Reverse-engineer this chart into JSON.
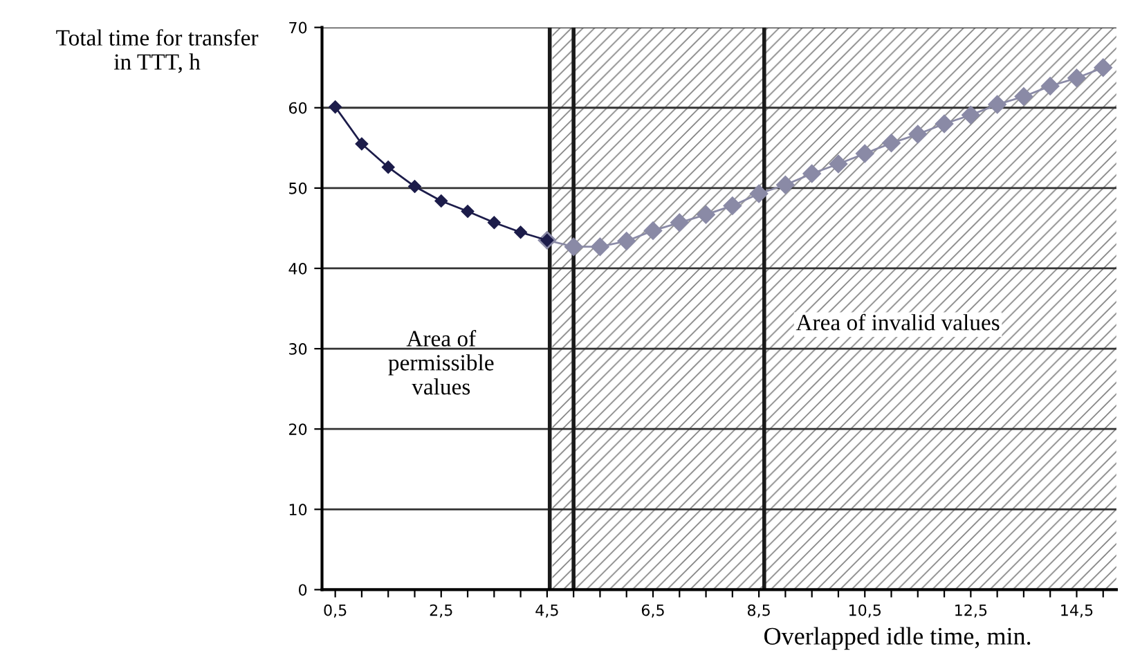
{
  "chart_data": {
    "type": "line",
    "ylabel": "Total time for transfer\nin TTT, h",
    "xlabel": "Overlapped idle time, min.",
    "series": [
      {
        "color": "#1c1c4a",
        "x": [
          0.5,
          1.0,
          1.5,
          2.0,
          2.5,
          3.0,
          3.5,
          4.0,
          4.5
        ],
        "values": [
          60.1,
          55.5,
          52.6,
          50.2,
          48.4,
          47.1,
          45.7,
          44.5,
          43.5
        ]
      },
      {
        "color": "#8a8aa6",
        "x": [
          4.5,
          5.0,
          5.5,
          6.0,
          6.5,
          7.0,
          7.5,
          8.0,
          8.5,
          9.0,
          9.5,
          10.0,
          10.5,
          11.0,
          11.5,
          12.0,
          12.5,
          13.0,
          13.5,
          14.0,
          14.5,
          15.0
        ],
        "values": [
          43.5,
          42.7,
          42.7,
          43.4,
          44.7,
          45.7,
          46.7,
          47.8,
          49.3,
          50.4,
          51.8,
          53.0,
          54.3,
          55.6,
          56.7,
          58.0,
          59.1,
          60.4,
          61.4,
          62.7,
          63.7,
          65.0
        ]
      }
    ],
    "marker": "diamond",
    "line_style": "solid",
    "xlim": [
      0.25,
      15.25
    ],
    "xticks": [
      {
        "value": 0.5,
        "label": "0,5"
      },
      {
        "value": 1.0,
        "label": null
      },
      {
        "value": 1.5,
        "label": null
      },
      {
        "value": 2.0,
        "label": null
      },
      {
        "value": 2.5,
        "label": "2,5"
      },
      {
        "value": 3.0,
        "label": null
      },
      {
        "value": 3.5,
        "label": null
      },
      {
        "value": 4.0,
        "label": null
      },
      {
        "value": 4.5,
        "label": "4,5"
      },
      {
        "value": 5.0,
        "label": null
      },
      {
        "value": 5.5,
        "label": null
      },
      {
        "value": 6.0,
        "label": null
      },
      {
        "value": 6.5,
        "label": "6,5"
      },
      {
        "value": 7.0,
        "label": null
      },
      {
        "value": 7.5,
        "label": null
      },
      {
        "value": 8.0,
        "label": null
      },
      {
        "value": 8.5,
        "label": "8,5"
      },
      {
        "value": 9.0,
        "label": null
      },
      {
        "value": 9.5,
        "label": null
      },
      {
        "value": 10.0,
        "label": null
      },
      {
        "value": 10.5,
        "label": "10,5"
      },
      {
        "value": 11.0,
        "label": null
      },
      {
        "value": 11.5,
        "label": null
      },
      {
        "value": 12.0,
        "label": null
      },
      {
        "value": 12.5,
        "label": "12,5"
      },
      {
        "value": 13.0,
        "label": null
      },
      {
        "value": 13.5,
        "label": null
      },
      {
        "value": 14.0,
        "label": null
      },
      {
        "value": 14.5,
        "label": "14,5"
      },
      {
        "value": 15.0,
        "label": null
      }
    ],
    "ylim": [
      0,
      70
    ],
    "yticks": [
      0,
      10,
      20,
      30,
      40,
      50,
      60,
      70
    ],
    "grid": "y",
    "ref_lines": [
      {
        "axis": "x",
        "value": 4.55,
        "color": "#1a1a1a"
      },
      {
        "axis": "x",
        "value": 5.0,
        "color": "#1a1a1a"
      },
      {
        "axis": "x",
        "value": 8.6,
        "color": "#1a1a1a"
      }
    ],
    "bands": [
      {
        "axis": "x",
        "from": 4.6,
        "to": 15.25,
        "label": "Area of invalid values",
        "color": "#808080"
      }
    ],
    "annotations": [
      "Area of\npermissible\nvalues"
    ]
  }
}
